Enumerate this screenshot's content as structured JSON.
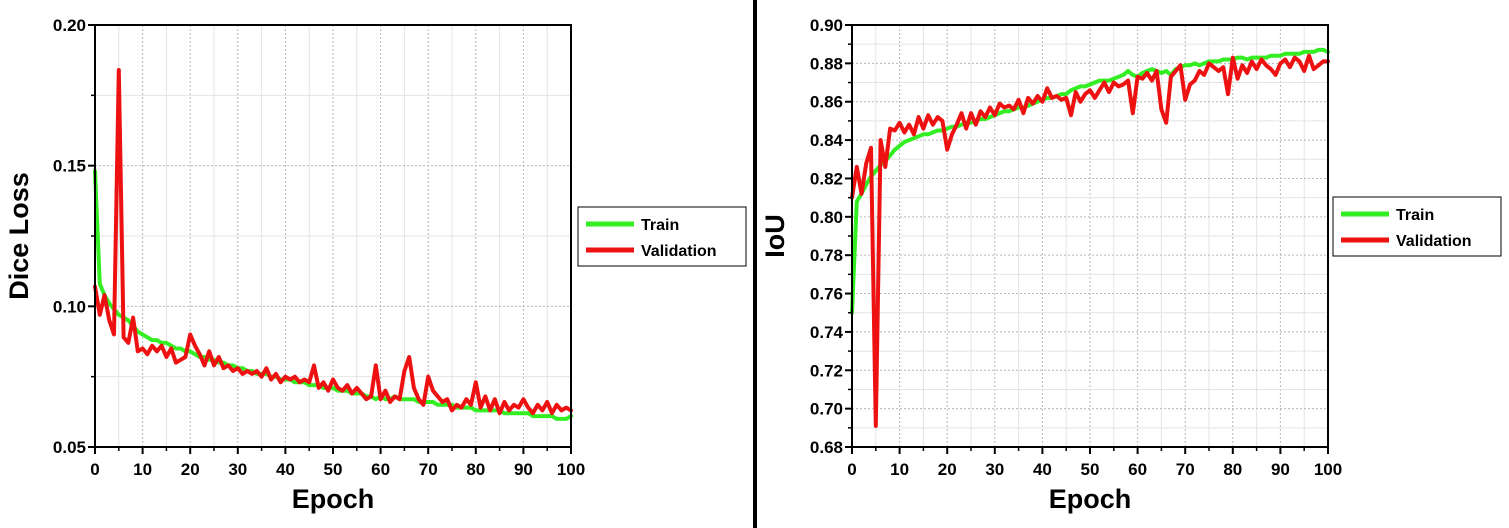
{
  "colors": {
    "train": "#33ee22",
    "validation": "#ee1111",
    "grid": "#b8b8b8",
    "divider": "#000000"
  },
  "chart_data": [
    {
      "type": "line",
      "title": "",
      "xlabel": "Epoch",
      "ylabel": "Dice Loss",
      "xlim": [
        0,
        100
      ],
      "ylim": [
        0.05,
        0.2
      ],
      "xticks": [
        0,
        10,
        20,
        30,
        40,
        50,
        60,
        70,
        80,
        90,
        100
      ],
      "yticks": [
        0.05,
        0.1,
        0.15,
        0.2
      ],
      "ytick_labels": [
        "0.05",
        "0.10",
        "0.15",
        "0.20"
      ],
      "grid": true,
      "legend_position": "right-outside",
      "x": [
        0,
        1,
        2,
        3,
        4,
        5,
        6,
        7,
        8,
        9,
        10,
        11,
        12,
        13,
        14,
        15,
        16,
        17,
        18,
        19,
        20,
        21,
        22,
        23,
        24,
        25,
        26,
        27,
        28,
        29,
        30,
        31,
        32,
        33,
        34,
        35,
        36,
        37,
        38,
        39,
        40,
        41,
        42,
        43,
        44,
        45,
        46,
        47,
        48,
        49,
        50,
        51,
        52,
        53,
        54,
        55,
        56,
        57,
        58,
        59,
        60,
        61,
        62,
        63,
        64,
        65,
        66,
        67,
        68,
        69,
        70,
        71,
        72,
        73,
        74,
        75,
        76,
        77,
        78,
        79,
        80,
        81,
        82,
        83,
        84,
        85,
        86,
        87,
        88,
        89,
        90,
        91,
        92,
        93,
        94,
        95,
        96,
        97,
        98,
        99,
        100
      ],
      "series": [
        {
          "name": "Train",
          "values": [
            0.148,
            0.108,
            0.104,
            0.101,
            0.099,
            0.097,
            0.096,
            0.095,
            0.093,
            0.091,
            0.09,
            0.089,
            0.088,
            0.088,
            0.087,
            0.087,
            0.086,
            0.085,
            0.085,
            0.084,
            0.084,
            0.083,
            0.082,
            0.082,
            0.081,
            0.081,
            0.08,
            0.08,
            0.079,
            0.079,
            0.078,
            0.078,
            0.077,
            0.077,
            0.076,
            0.076,
            0.076,
            0.075,
            0.075,
            0.074,
            0.074,
            0.074,
            0.073,
            0.073,
            0.073,
            0.072,
            0.072,
            0.072,
            0.071,
            0.071,
            0.071,
            0.07,
            0.07,
            0.07,
            0.069,
            0.069,
            0.069,
            0.068,
            0.068,
            0.067,
            0.068,
            0.067,
            0.067,
            0.068,
            0.067,
            0.067,
            0.067,
            0.067,
            0.066,
            0.066,
            0.066,
            0.066,
            0.065,
            0.065,
            0.065,
            0.065,
            0.064,
            0.064,
            0.064,
            0.064,
            0.063,
            0.063,
            0.063,
            0.063,
            0.063,
            0.063,
            0.062,
            0.062,
            0.062,
            0.062,
            0.062,
            0.062,
            0.061,
            0.061,
            0.061,
            0.061,
            0.061,
            0.06,
            0.06,
            0.06,
            0.061
          ]
        },
        {
          "name": "Validation",
          "values": [
            0.107,
            0.097,
            0.104,
            0.095,
            0.09,
            0.184,
            0.089,
            0.087,
            0.096,
            0.084,
            0.085,
            0.083,
            0.086,
            0.084,
            0.086,
            0.082,
            0.085,
            0.08,
            0.081,
            0.082,
            0.09,
            0.086,
            0.083,
            0.079,
            0.084,
            0.079,
            0.082,
            0.078,
            0.079,
            0.077,
            0.078,
            0.076,
            0.077,
            0.076,
            0.077,
            0.075,
            0.078,
            0.074,
            0.076,
            0.073,
            0.075,
            0.074,
            0.075,
            0.073,
            0.074,
            0.073,
            0.079,
            0.071,
            0.073,
            0.07,
            0.074,
            0.071,
            0.07,
            0.072,
            0.069,
            0.071,
            0.069,
            0.067,
            0.068,
            0.079,
            0.067,
            0.07,
            0.066,
            0.068,
            0.067,
            0.077,
            0.082,
            0.071,
            0.067,
            0.065,
            0.075,
            0.07,
            0.068,
            0.066,
            0.067,
            0.063,
            0.065,
            0.064,
            0.067,
            0.065,
            0.073,
            0.064,
            0.068,
            0.063,
            0.067,
            0.062,
            0.066,
            0.063,
            0.065,
            0.064,
            0.067,
            0.064,
            0.062,
            0.065,
            0.063,
            0.066,
            0.062,
            0.065,
            0.063,
            0.064,
            0.063
          ]
        }
      ]
    },
    {
      "type": "line",
      "title": "",
      "xlabel": "Epoch",
      "ylabel": "IoU",
      "xlim": [
        0,
        100
      ],
      "ylim": [
        0.68,
        0.9
      ],
      "xticks": [
        0,
        10,
        20,
        30,
        40,
        50,
        60,
        70,
        80,
        90,
        100
      ],
      "yticks": [
        0.68,
        0.7,
        0.72,
        0.74,
        0.76,
        0.78,
        0.8,
        0.82,
        0.84,
        0.86,
        0.88,
        0.9
      ],
      "ytick_labels": [
        "0.68",
        "0.70",
        "0.72",
        "0.74",
        "0.76",
        "0.78",
        "0.80",
        "0.82",
        "0.84",
        "0.86",
        "0.88",
        "0.90"
      ],
      "grid": true,
      "legend_position": "right-outside",
      "x": [
        0,
        1,
        2,
        3,
        4,
        5,
        6,
        7,
        8,
        9,
        10,
        11,
        12,
        13,
        14,
        15,
        16,
        17,
        18,
        19,
        20,
        21,
        22,
        23,
        24,
        25,
        26,
        27,
        28,
        29,
        30,
        31,
        32,
        33,
        34,
        35,
        36,
        37,
        38,
        39,
        40,
        41,
        42,
        43,
        44,
        45,
        46,
        47,
        48,
        49,
        50,
        51,
        52,
        53,
        54,
        55,
        56,
        57,
        58,
        59,
        60,
        61,
        62,
        63,
        64,
        65,
        66,
        67,
        68,
        69,
        70,
        71,
        72,
        73,
        74,
        75,
        76,
        77,
        78,
        79,
        80,
        81,
        82,
        83,
        84,
        85,
        86,
        87,
        88,
        89,
        90,
        91,
        92,
        93,
        94,
        95,
        96,
        97,
        98,
        99,
        100
      ],
      "series": [
        {
          "name": "Train",
          "values": [
            0.75,
            0.808,
            0.812,
            0.817,
            0.821,
            0.824,
            0.827,
            0.829,
            0.832,
            0.835,
            0.837,
            0.839,
            0.84,
            0.841,
            0.842,
            0.843,
            0.843,
            0.844,
            0.845,
            0.845,
            0.846,
            0.847,
            0.847,
            0.848,
            0.849,
            0.849,
            0.85,
            0.851,
            0.851,
            0.852,
            0.853,
            0.854,
            0.855,
            0.855,
            0.856,
            0.857,
            0.857,
            0.858,
            0.859,
            0.86,
            0.861,
            0.862,
            0.862,
            0.863,
            0.864,
            0.864,
            0.866,
            0.867,
            0.868,
            0.868,
            0.869,
            0.87,
            0.871,
            0.871,
            0.871,
            0.872,
            0.873,
            0.874,
            0.876,
            0.874,
            0.873,
            0.875,
            0.876,
            0.877,
            0.876,
            0.875,
            0.876,
            0.874,
            0.877,
            0.878,
            0.879,
            0.879,
            0.88,
            0.879,
            0.88,
            0.881,
            0.881,
            0.881,
            0.882,
            0.882,
            0.882,
            0.883,
            0.883,
            0.882,
            0.883,
            0.883,
            0.883,
            0.883,
            0.884,
            0.884,
            0.884,
            0.885,
            0.885,
            0.885,
            0.885,
            0.886,
            0.886,
            0.886,
            0.887,
            0.887,
            0.886
          ]
        },
        {
          "name": "Validation",
          "values": [
            0.81,
            0.826,
            0.812,
            0.828,
            0.836,
            0.691,
            0.84,
            0.826,
            0.846,
            0.845,
            0.849,
            0.844,
            0.848,
            0.843,
            0.852,
            0.846,
            0.853,
            0.848,
            0.852,
            0.85,
            0.835,
            0.843,
            0.848,
            0.854,
            0.846,
            0.854,
            0.848,
            0.855,
            0.852,
            0.857,
            0.853,
            0.859,
            0.857,
            0.858,
            0.856,
            0.861,
            0.854,
            0.862,
            0.859,
            0.863,
            0.86,
            0.867,
            0.862,
            0.863,
            0.861,
            0.862,
            0.853,
            0.865,
            0.86,
            0.864,
            0.866,
            0.862,
            0.866,
            0.87,
            0.865,
            0.87,
            0.868,
            0.869,
            0.871,
            0.854,
            0.873,
            0.872,
            0.875,
            0.871,
            0.876,
            0.856,
            0.849,
            0.873,
            0.876,
            0.879,
            0.861,
            0.869,
            0.871,
            0.876,
            0.874,
            0.88,
            0.878,
            0.876,
            0.878,
            0.864,
            0.883,
            0.872,
            0.879,
            0.875,
            0.881,
            0.877,
            0.882,
            0.879,
            0.877,
            0.874,
            0.88,
            0.882,
            0.878,
            0.883,
            0.881,
            0.876,
            0.884,
            0.877,
            0.879,
            0.881,
            0.881
          ]
        }
      ]
    }
  ]
}
